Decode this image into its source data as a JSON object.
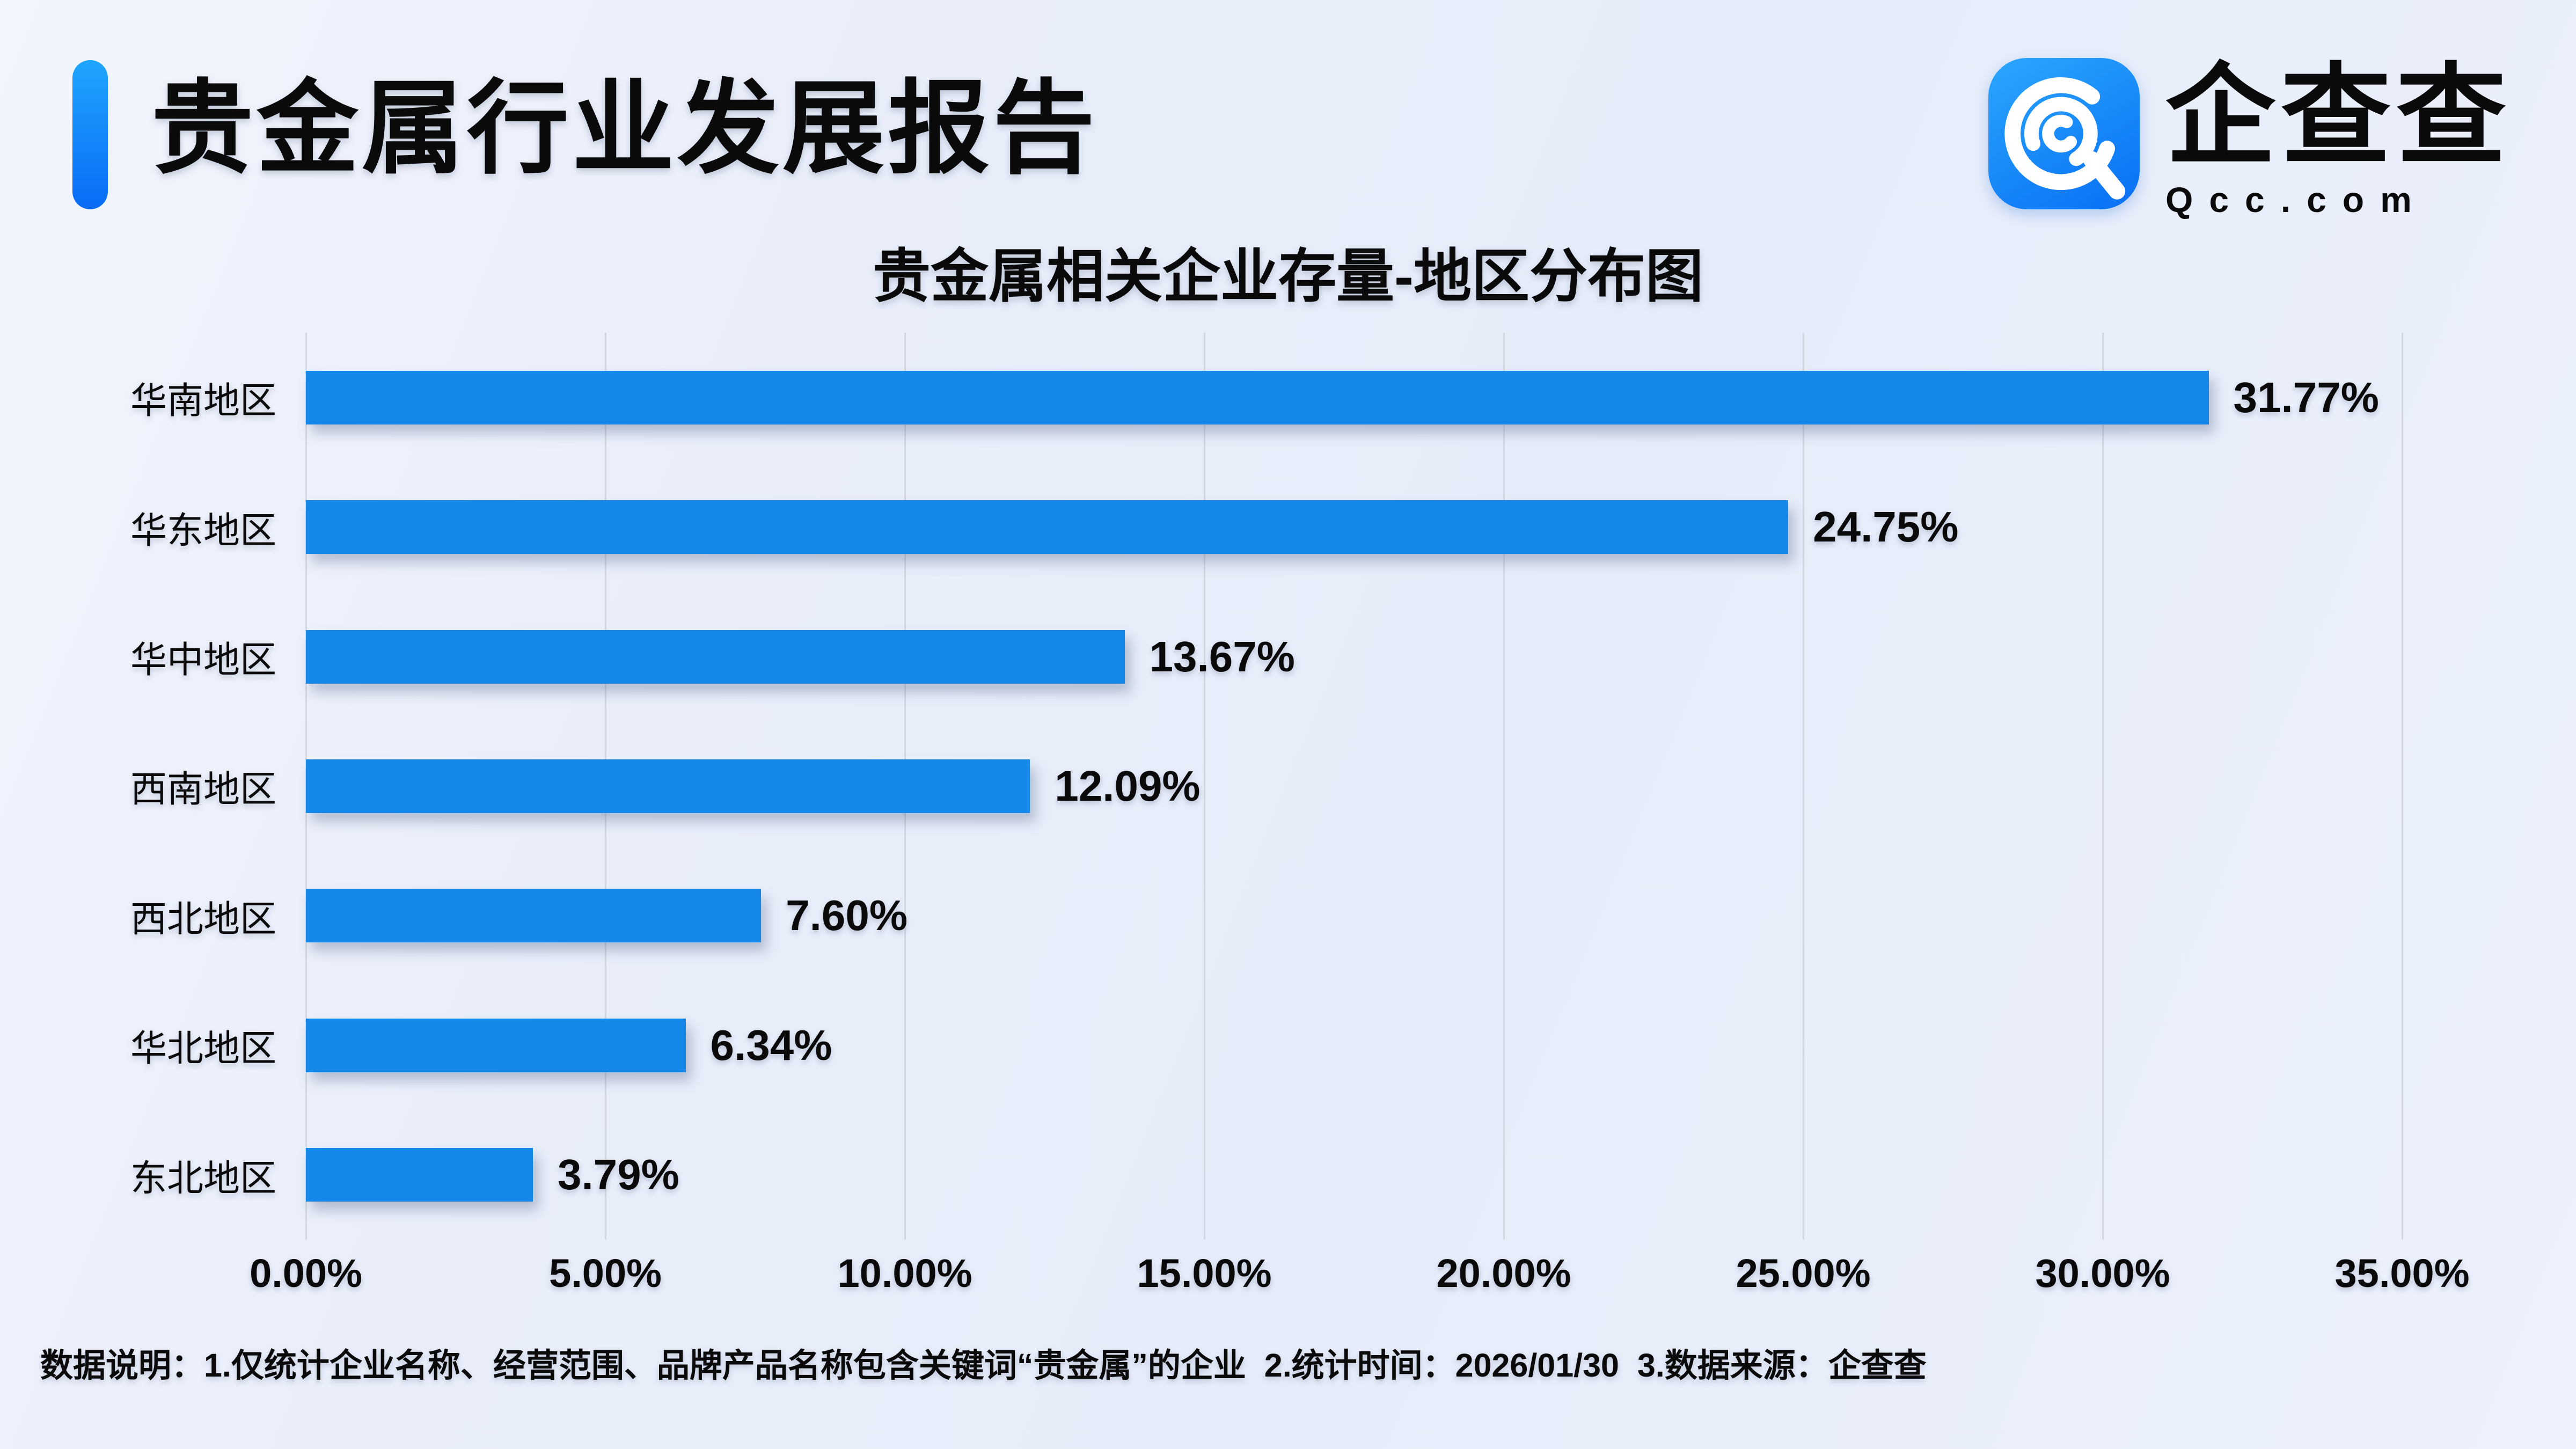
{
  "header": {
    "title": "贵金属行业发展报告",
    "accent_color_top": "#1FA6FF",
    "accent_color_bottom": "#0A6BF5",
    "logo": {
      "icon": "qcc-spiral-icon",
      "brand": "企查查",
      "domain": "Qcc.com",
      "icon_color": "#1487F5"
    }
  },
  "chart_data": {
    "type": "bar",
    "orientation": "horizontal",
    "title": "贵金属相关企业存量-地区分布图",
    "categories": [
      "华南地区",
      "华东地区",
      "华中地区",
      "西南地区",
      "西北地区",
      "华北地区",
      "东北地区"
    ],
    "values": [
      31.77,
      24.75,
      13.67,
      12.09,
      7.6,
      6.34,
      3.79
    ],
    "value_labels": [
      "31.77%",
      "24.75%",
      "13.67%",
      "12.09%",
      "7.60%",
      "6.34%",
      "3.79%"
    ],
    "x_ticks": [
      "0.00%",
      "5.00%",
      "10.00%",
      "15.00%",
      "20.00%",
      "25.00%",
      "30.00%",
      "35.00%"
    ],
    "xlim": [
      0,
      35
    ],
    "grid": true,
    "legend": "none",
    "bar_color": "#1688E9",
    "gridline_color": "#D2D7E0"
  },
  "footer": {
    "note": "数据说明：1.仅统计企业名称、经营范围、品牌产品名称包含关键词“贵金属”的企业  2.统计时间：2026/01/30  3.数据来源：企查查"
  }
}
